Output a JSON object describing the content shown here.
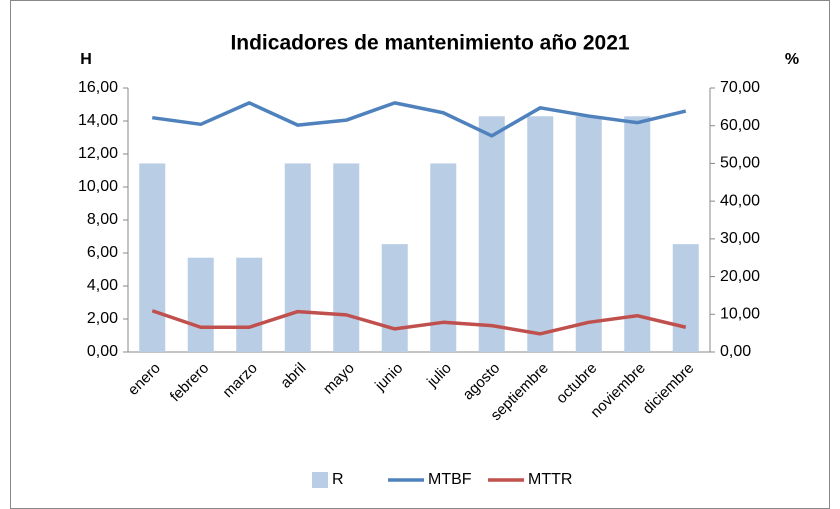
{
  "chart_data": {
    "type": "bar_line",
    "title": "Indicadores de mantenimiento año 2021",
    "y_axis_label": "H",
    "y2_axis_label": "%",
    "categories": [
      "enero",
      "febrero",
      "marzo",
      "abril",
      "mayo",
      "junio",
      "julio",
      "agosto",
      "septiembre",
      "octubre",
      "noviembre",
      "diciembre"
    ],
    "series": [
      {
        "name": "R",
        "type": "bar",
        "axis": "y2",
        "color": "#b9cde5",
        "values": [
          50,
          25,
          25,
          50,
          50,
          28.6,
          50,
          62.5,
          62.5,
          62.5,
          62.5,
          28.6
        ]
      },
      {
        "name": "MTBF",
        "type": "line",
        "color": "#4f81bd",
        "values": [
          14.2,
          13.8,
          15.1,
          13.75,
          14.05,
          15.1,
          14.5,
          13.1,
          14.8,
          14.3,
          13.9,
          14.6
        ]
      },
      {
        "name": "MTTR",
        "type": "line",
        "color": "#c0504d",
        "values": [
          2.5,
          1.5,
          1.5,
          2.45,
          2.25,
          1.4,
          1.8,
          1.6,
          1.1,
          1.8,
          2.2,
          1.5
        ]
      }
    ],
    "ylim": [
      0,
      16
    ],
    "yticks": [
      {
        "value": 0,
        "label": "0,00"
      },
      {
        "value": 2,
        "label": "2,00"
      },
      {
        "value": 4,
        "label": "4,00"
      },
      {
        "value": 6,
        "label": "6,00"
      },
      {
        "value": 8,
        "label": "8,00"
      },
      {
        "value": 10,
        "label": "10,00"
      },
      {
        "value": 12,
        "label": "12,00"
      },
      {
        "value": 14,
        "label": "14,00"
      },
      {
        "value": 16,
        "label": "16,00"
      }
    ],
    "y2lim": [
      0,
      70
    ],
    "y2ticks": [
      {
        "value": 0,
        "label": "0,00"
      },
      {
        "value": 10,
        "label": "10,00"
      },
      {
        "value": 20,
        "label": "20,00"
      },
      {
        "value": 30,
        "label": "30,00"
      },
      {
        "value": 40,
        "label": "40,00"
      },
      {
        "value": 50,
        "label": "50,00"
      },
      {
        "value": 60,
        "label": "60,00"
      },
      {
        "value": 70,
        "label": "70,00"
      }
    ],
    "legend": "bottom"
  }
}
